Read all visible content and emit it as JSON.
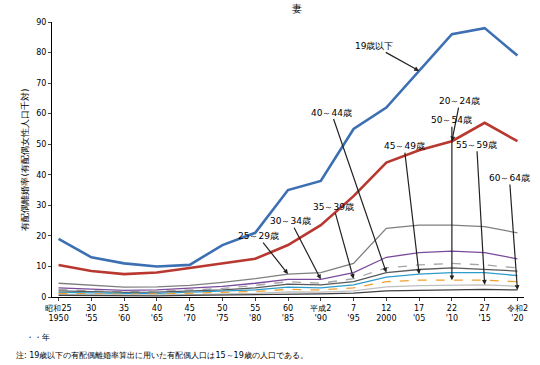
{
  "chart_data": {
    "type": "line",
    "title": "妻",
    "ylabel": "有配偶離婚率(有配偶女性人口千対)",
    "x_label": "・・年",
    "note": "注: 19歳以下の有配偶離婚率算出に用いた有配偶人口は15～19歳の人口である。",
    "categories": [
      "昭和25\n1950",
      "30\n'55",
      "35\n'60",
      "40\n'65",
      "45\n'70",
      "50\n'75",
      "55\n'80",
      "60\n'85",
      "平成2\n'90",
      "7\n'95",
      "12\n2000",
      "17\n'05",
      "22\n'10",
      "27\n'15",
      "令和2\n'20"
    ],
    "ylim": [
      0,
      90
    ],
    "yticks": [
      0,
      10,
      20,
      30,
      40,
      50,
      60,
      70,
      80,
      90
    ],
    "grid": false,
    "series": [
      {
        "name": "19歳以下",
        "color": "#3d6fb3",
        "line_style": "solid",
        "values": [
          19,
          13,
          11,
          10,
          10.5,
          17,
          21,
          35,
          38,
          55,
          62,
          74,
          86,
          88,
          79
        ]
      },
      {
        "name": "20～24歳",
        "color": "#b8382f",
        "line_style": "solid",
        "values": [
          10.5,
          8.5,
          7.5,
          8,
          9.5,
          11,
          12.5,
          17,
          23.5,
          33,
          44,
          48,
          51,
          57,
          51
        ]
      },
      {
        "name": "25～29歳",
        "color": "#7f7f7f",
        "line_style": "solid",
        "values": [
          4.5,
          3.8,
          3.2,
          3.3,
          3.8,
          4.8,
          6,
          7.5,
          8,
          11,
          22.5,
          23.5,
          23.5,
          23,
          21
        ]
      },
      {
        "name": "30～34歳",
        "color": "#7a4a9c",
        "line_style": "solid",
        "values": [
          3,
          2.5,
          2.2,
          2.3,
          2.8,
          3.5,
          4.5,
          5.8,
          5.8,
          8,
          13,
          14.5,
          15,
          14.5,
          12.5
        ]
      },
      {
        "name": "35～39歳",
        "color": "#a5a5a5",
        "line_style": "dash",
        "values": [
          2.5,
          2,
          1.8,
          1.9,
          2.3,
          2.8,
          3.8,
          5,
          4.5,
          6,
          9.5,
          10.5,
          11,
          10.5,
          9.5
        ]
      },
      {
        "name": "40～44歳",
        "color": "#595959",
        "line_style": "solid",
        "values": [
          2,
          1.7,
          1.5,
          1.6,
          1.9,
          2.3,
          3,
          4.2,
          4,
          5,
          8,
          9,
          9.5,
          9,
          8.5
        ]
      },
      {
        "name": "45～49歳",
        "color": "#2e9cca",
        "line_style": "solid",
        "values": [
          1.5,
          1.3,
          1.2,
          1.2,
          1.5,
          1.8,
          2.3,
          3.2,
          3,
          4,
          6.5,
          7.5,
          8,
          8,
          7
        ]
      },
      {
        "name": "50～54歳",
        "color": "#f0a030",
        "line_style": "dash",
        "values": [
          1.2,
          1,
          0.9,
          1,
          1.2,
          1.4,
          1.8,
          2.5,
          2.3,
          3,
          5,
          5.5,
          5.5,
          5.5,
          5
        ]
      },
      {
        "name": "55～59歳",
        "color": "#bfbfbf",
        "line_style": "solid",
        "values": [
          0.8,
          0.7,
          0.6,
          0.7,
          0.8,
          1,
          1.2,
          1.7,
          1.6,
          2,
          3.3,
          3.7,
          3.8,
          4,
          3.5
        ]
      },
      {
        "name": "60～64歳",
        "color": "#404040",
        "line_style": "solid",
        "values": [
          0.5,
          0.4,
          0.4,
          0.4,
          0.5,
          0.6,
          0.8,
          1,
          1,
          1.3,
          2,
          2.2,
          2.3,
          2.5,
          2.3
        ]
      }
    ]
  }
}
